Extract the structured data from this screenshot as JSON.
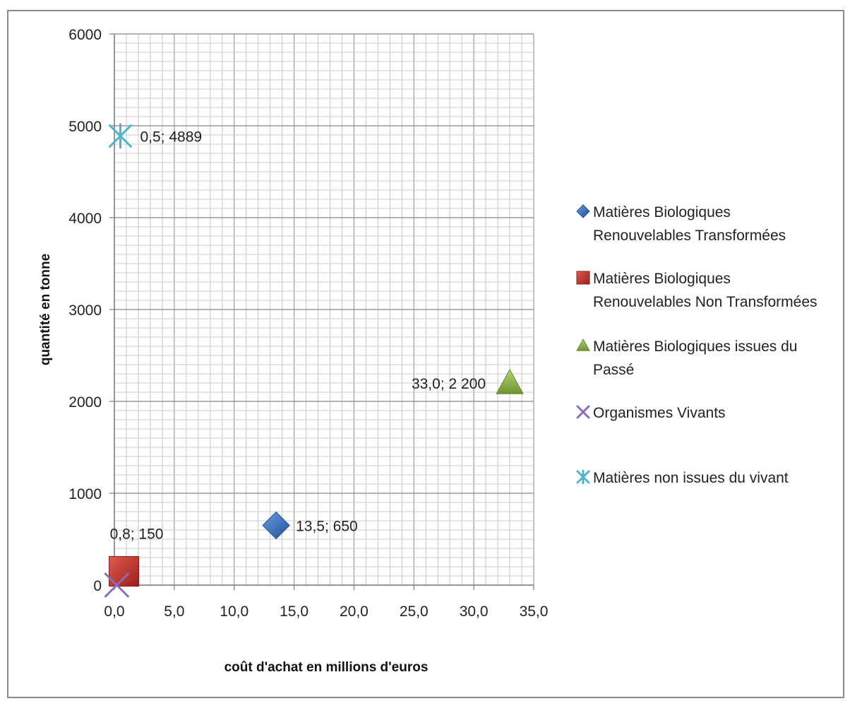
{
  "chart_data": {
    "type": "scatter",
    "title": "",
    "xlabel": "coût d'achat en millions d'euros",
    "ylabel": "quantité  en tonne",
    "xlim": [
      0,
      35
    ],
    "ylim": [
      0,
      6000
    ],
    "x_ticks": [
      "0,0",
      "5,0",
      "10,0",
      "15,0",
      "20,0",
      "25,0",
      "30,0",
      "35,0"
    ],
    "y_ticks": [
      "0",
      "1000",
      "2000",
      "3000",
      "4000",
      "5000",
      "6000"
    ],
    "grid": true,
    "legend_position": "right",
    "series": [
      {
        "name": "Matières Biologiques Renouvelables Transformées",
        "legend_lines": [
          "Matières Biologiques",
          "Renouvelables Transformées"
        ],
        "marker": "diamond",
        "color": "#3a6fc1",
        "points": [
          {
            "x": 13.5,
            "y": 650,
            "label": "13,5; 650",
            "label_side": "right"
          }
        ]
      },
      {
        "name": "Matières Biologiques Renouvelables Non Transformées",
        "legend_lines": [
          "Matières Biologiques",
          "Renouvelables Non Transformées"
        ],
        "marker": "square",
        "color": "#c0302a",
        "points": [
          {
            "x": 0.8,
            "y": 150,
            "label": "0,8; 150",
            "label_side": "above"
          }
        ]
      },
      {
        "name": "Matières Biologiques issues du Passé",
        "legend_lines": [
          "Matières Biologiques issues du",
          "Passé"
        ],
        "marker": "triangle",
        "color": "#8bb04a",
        "points": [
          {
            "x": 33.0,
            "y": 2200,
            "label": "33,0; 2 200",
            "label_side": "left"
          }
        ]
      },
      {
        "name": "Organismes Vivants",
        "legend_lines": [
          "Organismes Vivants"
        ],
        "marker": "x",
        "color": "#8b6bb8",
        "points": [
          {
            "x": 0.2,
            "y": 0,
            "label": "",
            "label_side": "none"
          }
        ]
      },
      {
        "name": "Matières non issues du vivant",
        "legend_lines": [
          "Matières non issues du vivant"
        ],
        "marker": "star",
        "color": "#4fb3cc",
        "points": [
          {
            "x": 0.5,
            "y": 4889,
            "label": "0,5; 4889",
            "label_side": "right"
          }
        ]
      }
    ]
  }
}
